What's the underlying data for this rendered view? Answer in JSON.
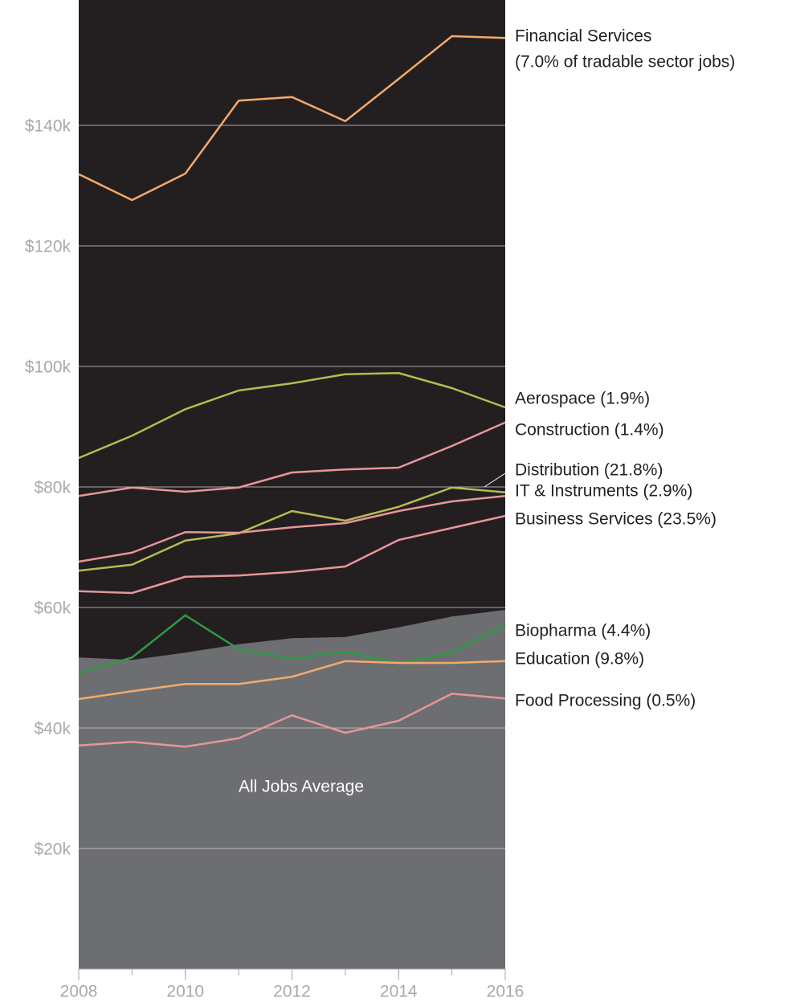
{
  "chart_data": {
    "type": "line",
    "x": [
      2008,
      2009,
      2010,
      2011,
      2012,
      2013,
      2014,
      2015,
      2016
    ],
    "xlim": [
      2008,
      2016
    ],
    "xticks": [
      2008,
      2010,
      2012,
      2014,
      2016
    ],
    "ylim": [
      0,
      160800
    ],
    "yticks": [
      {
        "value": 20000,
        "label": "$20k"
      },
      {
        "value": 40000,
        "label": "$40k"
      },
      {
        "value": 60000,
        "label": "$60k"
      },
      {
        "value": 80000,
        "label": "$80k"
      },
      {
        "value": 100000,
        "label": "$100k"
      },
      {
        "value": 120000,
        "label": "$120k"
      },
      {
        "value": 140000,
        "label": "$140k"
      }
    ],
    "grid": true,
    "series": [
      {
        "name": "All Jobs Average",
        "kind": "area",
        "color": "#6d6e72",
        "values": [
          51700,
          51300,
          52500,
          53900,
          54900,
          55100,
          56700,
          58500,
          59600
        ]
      },
      {
        "name": "Financial Services",
        "note": "(7.0% of tradable sector jobs)",
        "color": "#f4a96b",
        "values": [
          131900,
          127600,
          132000,
          144100,
          144700,
          140700,
          147700,
          154800,
          154500
        ]
      },
      {
        "name": "Aerospace (1.9%)",
        "color": "#b5bc50",
        "values": [
          84800,
          88500,
          92900,
          96000,
          97200,
          98700,
          98900,
          96400,
          93200
        ]
      },
      {
        "name": "Construction (1.4%)",
        "color": "#e8959a",
        "values": [
          78500,
          79900,
          79200,
          79900,
          82400,
          82900,
          83200,
          86800,
          90700
        ]
      },
      {
        "name": "Distribution (21.8%)",
        "color": "#b5bc50",
        "values": [
          66100,
          67100,
          71100,
          72300,
          76000,
          74400,
          76700,
          79900,
          79100
        ]
      },
      {
        "name": "IT & Instruments (2.9%)",
        "color": "#e8959a",
        "values": [
          67600,
          69100,
          72500,
          72400,
          73300,
          74000,
          76000,
          77600,
          78500
        ]
      },
      {
        "name": "Business Services (23.5%)",
        "color": "#e8959a",
        "values": [
          62700,
          62400,
          65100,
          65300,
          65900,
          66800,
          71200,
          73200,
          75200
        ]
      },
      {
        "name": "Biopharma (4.4%)",
        "color": "#2e9a44",
        "values": [
          49100,
          51700,
          58700,
          53100,
          51500,
          52700,
          50700,
          52500,
          57100
        ]
      },
      {
        "name": "Education (9.8%)",
        "color": "#f4a96b",
        "values": [
          44800,
          46100,
          47300,
          47300,
          48500,
          51100,
          50800,
          50800,
          51100
        ]
      },
      {
        "name": "Food Processing (0.5%)",
        "color": "#e8959a",
        "values": [
          37100,
          37700,
          36900,
          38300,
          42100,
          39200,
          41200,
          45700,
          44900
        ]
      }
    ]
  }
}
